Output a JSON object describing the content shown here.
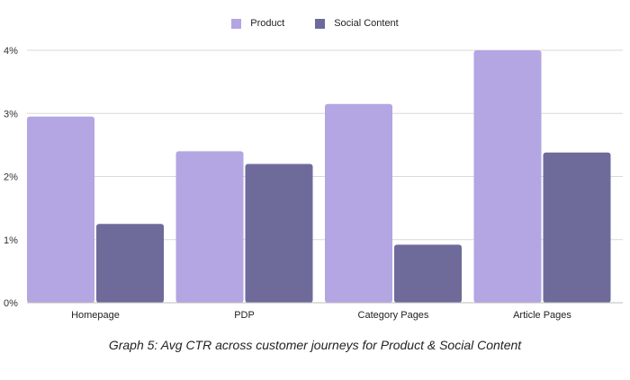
{
  "chart_data": {
    "type": "bar",
    "categories": [
      "Homepage",
      "PDP",
      "Category Pages",
      "Article Pages"
    ],
    "series": [
      {
        "name": "Product",
        "values": [
          2.95,
          2.4,
          3.15,
          4.0
        ],
        "color": "#b3a6e2"
      },
      {
        "name": "Social Content",
        "values": [
          1.25,
          2.2,
          0.92,
          2.38
        ],
        "color": "#6e6b9b"
      }
    ],
    "ylim": [
      0,
      4
    ],
    "yticks": [
      0,
      1,
      2,
      3,
      4
    ],
    "ytick_labels": [
      "0%",
      "1%",
      "2%",
      "3%",
      "4%"
    ],
    "grid": true,
    "legend_position": "top-center",
    "caption": "Graph 5: Avg CTR across customer journeys for Product & Social Content"
  }
}
